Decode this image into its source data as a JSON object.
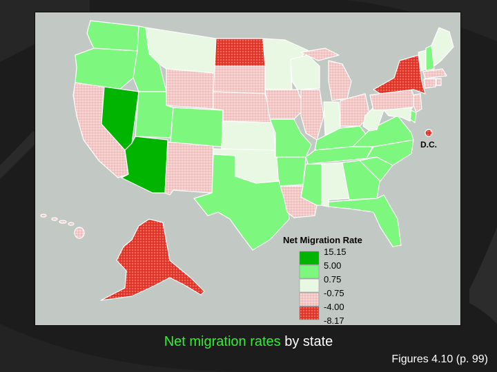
{
  "caption": {
    "highlight": "Net migration rates",
    "rest": " by state"
  },
  "figure_ref": "Figures 4.10 (p. 99)",
  "dc_label": "D.C.",
  "legend": {
    "title": "Net Migration Rate",
    "breaks": [
      "15.15",
      "5.00",
      "0.75",
      "-0.75",
      "-4.00",
      "-8.17"
    ],
    "classes": [
      {
        "key": "c1",
        "range": "5.00 – 15.15",
        "color": "#00b400"
      },
      {
        "key": "c2",
        "range": "0.75 – 5.00",
        "color": "#7ef77e"
      },
      {
        "key": "c3",
        "range": "-0.75 – 0.75",
        "color": "#e8f8e2"
      },
      {
        "key": "c4",
        "range": "-4.00 – -0.75",
        "color": "#f4c8c6",
        "pattern": "dotted"
      },
      {
        "key": "c5",
        "range": "-8.17 – -4.00",
        "color": "#e4392c",
        "pattern": "dotted"
      }
    ]
  },
  "colors": {
    "c1": "#00b400",
    "c2": "#7ef77e",
    "c3": "#e8f8e2",
    "c4": "#f4c8c6",
    "c5": "#e4392c",
    "map_background": "#c2c8c3",
    "slide_background": "#1c1c1c",
    "caption_highlight": "#33ee33"
  },
  "states": {
    "WA": "c2",
    "OR": "c2",
    "CA": "c4",
    "NV": "c1",
    "ID": "c2",
    "MT": "c3",
    "WY": "c4",
    "UT": "c2",
    "AZ": "c1",
    "CO": "c2",
    "NM": "c4",
    "ND": "c5",
    "SD": "c4",
    "NE": "c4",
    "KS": "c3",
    "OK": "c3",
    "TX": "c2",
    "MN": "c3",
    "IA": "c4",
    "MO": "c2",
    "AR": "c2",
    "LA": "c4",
    "WI": "c3",
    "IL": "c4",
    "MI": "c4",
    "IN": "c3",
    "OH": "c4",
    "KY": "c2",
    "TN": "c2",
    "MS": "c2",
    "AL": "c3",
    "GA": "c2",
    "FL": "c2",
    "SC": "c2",
    "NC": "c2",
    "VA": "c2",
    "WV": "c3",
    "PA": "c4",
    "NY": "c5",
    "VT": "c3",
    "NH": "c2",
    "ME": "c3",
    "MA": "c4",
    "CT": "c4",
    "RI": "c4",
    "NJ": "c4",
    "DE": "c2",
    "MD": "c3",
    "DC": "c5",
    "AK": "c5",
    "HI": "c4"
  }
}
